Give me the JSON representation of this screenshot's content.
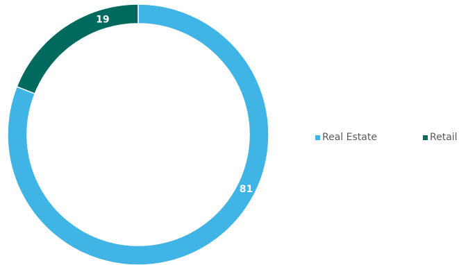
{
  "chart_data": {
    "type": "pie",
    "variant": "donut",
    "title": "",
    "slices": [
      {
        "label": "Real Estate",
        "value": 81,
        "color": "#41b4e6"
      },
      {
        "label": "Retail",
        "value": 19,
        "color": "#006a5e"
      }
    ],
    "data_labels": [
      "81",
      "19"
    ],
    "legend_position": "right"
  }
}
